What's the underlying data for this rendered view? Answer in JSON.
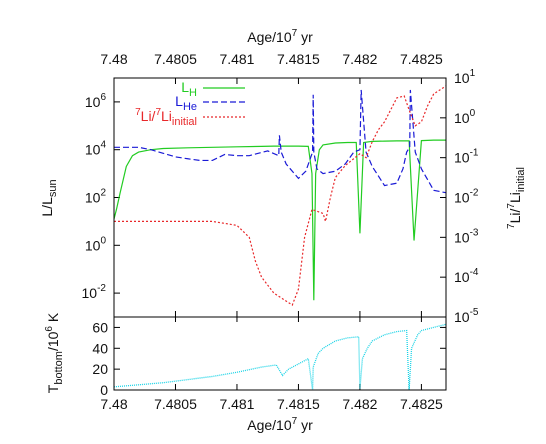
{
  "colors": {
    "L_H": "#22cc22",
    "L_He": "#1a1ad6",
    "Li": "#e8282a",
    "T_bottom": "#17d3e6",
    "frame": "#000000"
  },
  "chart_data": [
    {
      "type": "line",
      "x_axis_top": {
        "label": "Age/10",
        "label_sup": "7",
        "label_tail": " yr",
        "range": [
          7.48,
          7.4827
        ],
        "ticks": [
          "7.48",
          "7.4805",
          "7.481",
          "7.4815",
          "7.482",
          "7.4825"
        ],
        "tick_values": [
          7.48,
          7.4805,
          7.481,
          7.4815,
          7.482,
          7.4825
        ]
      },
      "y_left": {
        "label_main": "L/L",
        "label_sub": "sun",
        "scale": "log",
        "range_exp": [
          -3,
          7
        ],
        "ticks": [
          {
            "base": "10",
            "exp": "6",
            "value_exp": 6
          },
          {
            "base": "10",
            "exp": "4",
            "value_exp": 4
          },
          {
            "base": "10",
            "exp": "2",
            "value_exp": 2
          },
          {
            "base": "10",
            "exp": "0",
            "value_exp": 0
          },
          {
            "base": "10",
            "exp": "-2",
            "value_exp": -2
          }
        ]
      },
      "y_right": {
        "label_parts": [
          "7",
          "Li/",
          "7",
          "Li",
          "initial"
        ],
        "scale": "log",
        "range_exp": [
          -5,
          1
        ],
        "ticks": [
          {
            "base": "10",
            "exp": "1",
            "value_exp": 1
          },
          {
            "base": "10",
            "exp": "0",
            "value_exp": 0
          },
          {
            "base": "10",
            "exp": "-1",
            "value_exp": -1
          },
          {
            "base": "10",
            "exp": "-2",
            "value_exp": -2
          },
          {
            "base": "10",
            "exp": "-3",
            "value_exp": -3
          },
          {
            "base": "10",
            "exp": "-4",
            "value_exp": -4
          },
          {
            "base": "10",
            "exp": "-5",
            "value_exp": -5
          }
        ]
      },
      "legend_position": "top-left",
      "legend": [
        {
          "main": "L",
          "sub": "H",
          "style": "solid",
          "series": "L_H"
        },
        {
          "main": "L",
          "sub": "He",
          "style": "dashed",
          "series": "L_He"
        },
        {
          "main": "Li/",
          "pre_sup": "7",
          "mid_sup": "7",
          "tail": "Li",
          "sub": "initial",
          "style": "dotted",
          "series": "Li"
        }
      ],
      "series": [
        {
          "key": "L_H",
          "axis": "left",
          "log10_values": true,
          "x": [
            7.48,
            7.48002,
            7.48005,
            7.4801,
            7.48015,
            7.4802,
            7.4803,
            7.4804,
            7.4806,
            7.4808,
            7.481,
            7.4812,
            7.4813,
            7.48135,
            7.4814,
            7.4815,
            7.48158,
            7.48161,
            7.481625,
            7.48164,
            7.48167,
            7.4817,
            7.4818,
            7.4819,
            7.48197,
            7.482,
            7.48203,
            7.4821,
            7.4822,
            7.4823,
            7.48236,
            7.4824,
            7.48244,
            7.4825,
            7.4826,
            7.4827
          ],
          "y": [
            1.1,
            1.5,
            2.2,
            3.3,
            3.75,
            3.9,
            4.0,
            4.05,
            4.08,
            4.1,
            4.12,
            4.14,
            4.15,
            4.15,
            4.15,
            4.15,
            4.14,
            3.0,
            -2.3,
            3.0,
            4.0,
            4.2,
            4.28,
            4.3,
            4.3,
            0.5,
            4.3,
            4.35,
            4.36,
            4.37,
            4.37,
            4.37,
            0.2,
            4.38,
            4.4,
            4.4
          ]
        },
        {
          "key": "L_He",
          "axis": "left",
          "log10_values": true,
          "x": [
            7.48,
            7.4802,
            7.4803,
            7.4804,
            7.4805,
            7.4806,
            7.4807,
            7.4808,
            7.4809,
            7.481,
            7.4811,
            7.48125,
            7.48134,
            7.481345,
            7.48136,
            7.4814,
            7.4815,
            7.48156,
            7.481615,
            7.48162,
            7.481625,
            7.48165,
            7.4817,
            7.4818,
            7.48188,
            7.48195,
            7.482,
            7.48201,
            7.48205,
            7.4821,
            7.4822,
            7.4823,
            7.48235,
            7.48238,
            7.482405,
            7.48241,
            7.48245,
            7.4825,
            7.4826,
            7.4827
          ],
          "y": [
            4.1,
            4.1,
            4.0,
            3.85,
            3.7,
            3.62,
            3.55,
            3.55,
            3.8,
            3.75,
            3.75,
            3.95,
            3.75,
            4.6,
            3.9,
            3.4,
            2.8,
            3.1,
            3.9,
            6.3,
            3.9,
            3.2,
            3.0,
            3.1,
            3.4,
            3.9,
            4.0,
            6.5,
            3.9,
            3.3,
            2.5,
            2.6,
            3.2,
            3.9,
            4.1,
            6.5,
            3.9,
            3.2,
            2.3,
            2.2
          ]
        },
        {
          "key": "Li",
          "axis": "right",
          "log10_values": true,
          "x": [
            7.48,
            7.4802,
            7.4805,
            7.4808,
            7.481,
            7.4811,
            7.48115,
            7.4812,
            7.4813,
            7.4814,
            7.48145,
            7.4815,
            7.48155,
            7.48161,
            7.4817,
            7.48172,
            7.48176,
            7.4818,
            7.48188,
            7.48192,
            7.482,
            7.48205,
            7.4821,
            7.48215,
            7.4822,
            7.48225,
            7.4823,
            7.48236,
            7.4824,
            7.48245,
            7.4825,
            7.48255,
            7.4826,
            7.4827
          ],
          "y": [
            -2.6,
            -2.6,
            -2.6,
            -2.6,
            -2.7,
            -3.0,
            -3.6,
            -4.0,
            -4.4,
            -4.6,
            -4.7,
            -4.3,
            -3.0,
            -2.3,
            -2.4,
            -2.6,
            -2.0,
            -1.5,
            -1.2,
            -1.1,
            -0.9,
            -1.0,
            -0.6,
            -0.3,
            -0.1,
            0.2,
            0.5,
            0.55,
            0.2,
            -0.2,
            -0.1,
            0.3,
            0.6,
            0.8
          ]
        }
      ]
    },
    {
      "type": "line",
      "x_axis_bottom": {
        "label": "Age/10",
        "label_sup": "7",
        "label_tail": " yr",
        "range": [
          7.48,
          7.4827
        ],
        "ticks": [
          "7.48",
          "7.4805",
          "7.481",
          "7.4815",
          "7.482",
          "7.4825"
        ],
        "tick_values": [
          7.48,
          7.4805,
          7.481,
          7.4815,
          7.482,
          7.4825
        ]
      },
      "y_left": {
        "label_main": "T",
        "label_sub": "bottom",
        "label_tail": "/10",
        "label_sup": "6",
        "label_end": " K",
        "range": [
          0,
          70
        ],
        "ticks": [
          "60",
          "40",
          "20",
          "0"
        ],
        "tick_values": [
          60,
          40,
          20,
          0
        ]
      },
      "series": [
        {
          "key": "T_bottom",
          "axis": "left",
          "x": [
            7.48,
            7.4802,
            7.4804,
            7.4806,
            7.4808,
            7.481,
            7.4812,
            7.48132,
            7.48137,
            7.48142,
            7.4815,
            7.48158,
            7.481615,
            7.48162,
            7.48166,
            7.4817,
            7.4818,
            7.4819,
            7.48199,
            7.482,
            7.48202,
            7.48206,
            7.4821,
            7.4822,
            7.4823,
            7.48238,
            7.4824,
            7.48242,
            7.48247,
            7.4825,
            7.4826,
            7.4827
          ],
          "y": [
            3,
            5,
            7,
            10,
            13,
            17,
            22,
            24,
            14,
            20,
            25,
            30,
            0,
            22,
            35,
            40,
            47,
            50,
            51,
            1,
            30,
            40,
            47,
            53,
            56,
            57,
            0,
            40,
            53,
            57,
            60,
            63
          ]
        }
      ]
    }
  ]
}
